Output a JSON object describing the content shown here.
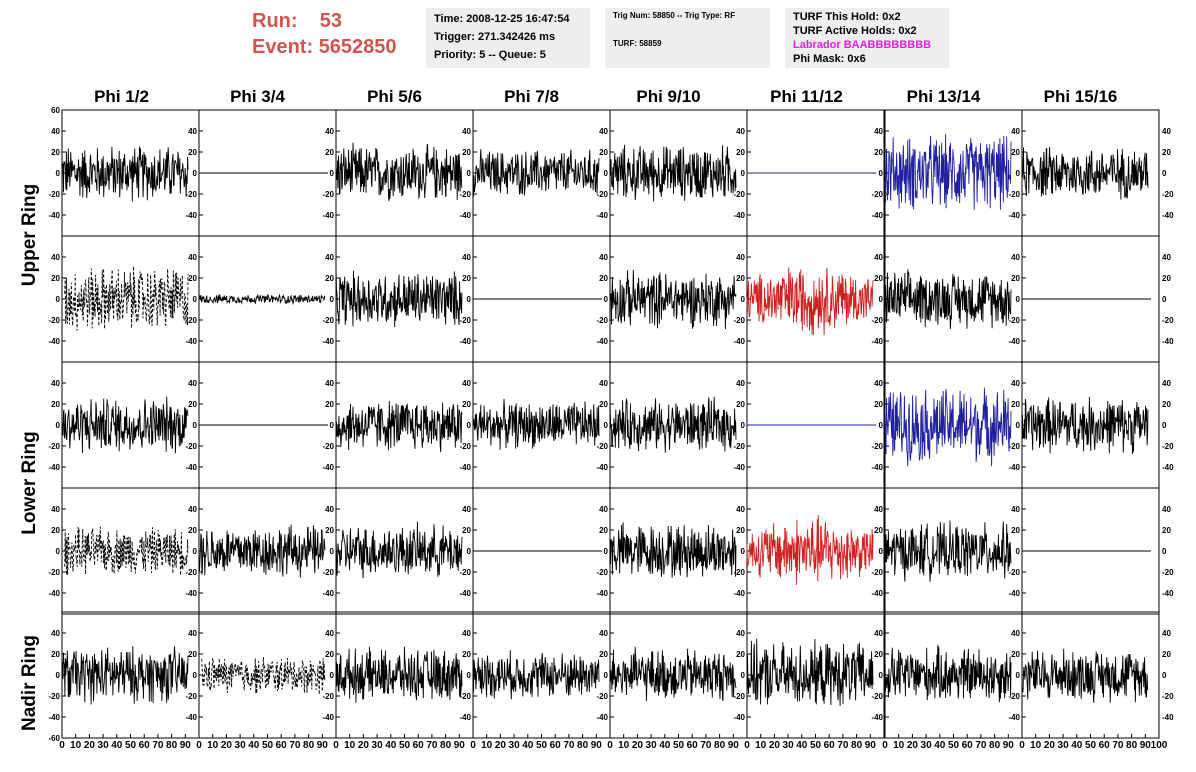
{
  "run": {
    "run_label": "Run:",
    "run_value": "53",
    "event_label": "Event:",
    "event_value": "5652850"
  },
  "info1": {
    "time": "Time: 2008-12-25 16:47:54",
    "trigger": "Trigger: 271.342426 ms",
    "priority": "Priority: 5 -- Queue: 5"
  },
  "info2": {
    "trig": "Trig Num: 58850 -- Trig Type: RF",
    "turf": "TURF: 58859"
  },
  "info3": {
    "this_hold": "TURF This Hold: 0x2",
    "active_holds": "TURF Active Holds: 0x2",
    "labrador": "Labrador BAABBBBBBBB",
    "phi_mask": "Phi Mask: 0x6"
  },
  "phi_headers": [
    "Phi 1/2",
    "Phi 3/4",
    "Phi 5/6",
    "Phi 7/8",
    "Phi 9/10",
    "Phi 11/12",
    "Phi 13/14",
    "Phi 15/16"
  ],
  "ring_labels": {
    "upper": "Upper Ring",
    "lower": "Lower Ring",
    "nadir": "Nadir Ring"
  },
  "y_ticks": [
    60,
    40,
    20,
    0,
    -20,
    -40,
    -60
  ],
  "x_ticks": [
    0,
    10,
    20,
    30,
    40,
    50,
    60,
    70,
    80,
    90,
    100
  ],
  "colors": {
    "run": "#d0554e",
    "black": "#000000",
    "blue": "#2020a0",
    "red": "#d02020",
    "labrador": "#e020e0"
  },
  "chart_data": {
    "type": "line",
    "title": "",
    "xlim": [
      0,
      100
    ],
    "ylim": [
      -60,
      60
    ],
    "rows": [
      "Upper Ring",
      "Upper Ring",
      "Lower Ring",
      "Lower Ring",
      "Nadir Ring"
    ],
    "columns": [
      "Phi 1/2",
      "Phi 3/4",
      "Phi 5/6",
      "Phi 7/8",
      "Phi 9/10",
      "Phi 11/12",
      "Phi 13/14",
      "Phi 15/16"
    ],
    "panel_styles": [
      [
        "solid-black",
        "flat-black",
        "solid-black",
        "solid-black",
        "solid-black",
        "flat-blue",
        "solid-blue",
        "solid-black"
      ],
      [
        "dashed-black",
        "small-black",
        "solid-black",
        "flat-black",
        "solid-black",
        "solid-red",
        "solid-black",
        "flat-black"
      ],
      [
        "solid-black",
        "flat-black",
        "solid-black",
        "solid-black",
        "solid-black",
        "flat-blue",
        "solid-blue",
        "solid-black"
      ],
      [
        "dashed-black",
        "solid-black",
        "solid-black",
        "flat-black",
        "solid-black",
        "solid-red",
        "solid-black",
        "flat-black"
      ],
      [
        "solid-black",
        "dashed-black",
        "solid-black",
        "solid-black",
        "solid-black",
        "solid-black",
        "solid-black",
        "solid-black"
      ]
    ],
    "waveform_amplitude": [
      [
        30,
        0,
        30,
        25,
        30,
        0,
        40,
        28
      ],
      [
        35,
        5,
        30,
        0,
        30,
        38,
        30,
        0
      ],
      [
        30,
        0,
        28,
        25,
        28,
        0,
        40,
        30
      ],
      [
        25,
        28,
        28,
        0,
        30,
        38,
        30,
        0
      ],
      [
        30,
        20,
        28,
        25,
        28,
        35,
        30,
        28
      ]
    ]
  }
}
